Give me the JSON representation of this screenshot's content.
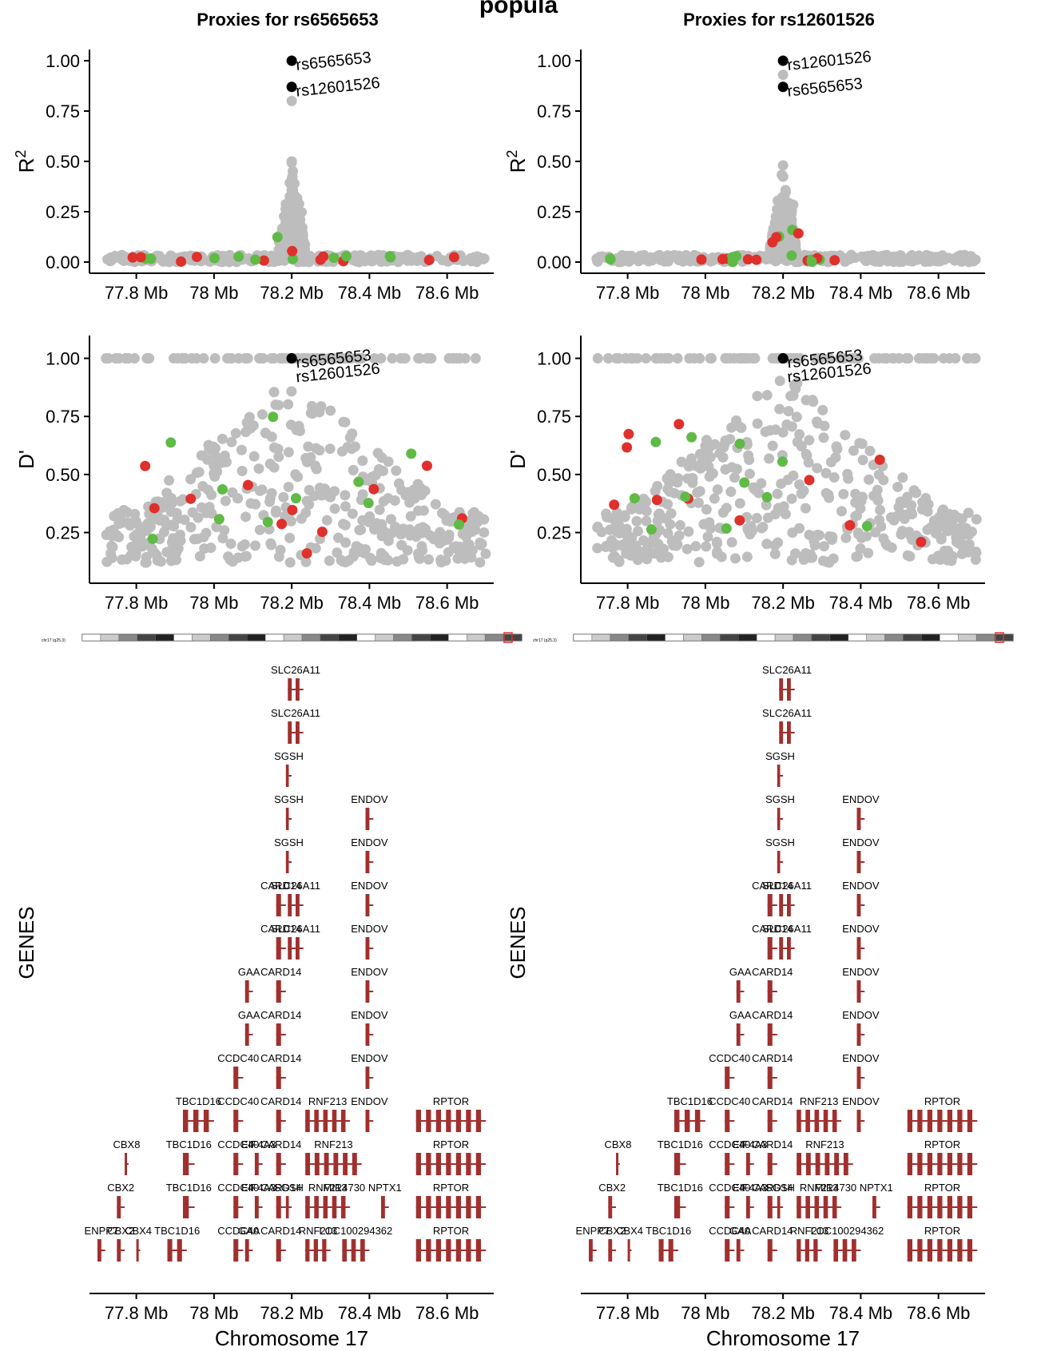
{
  "page": {
    "partial_header": "popula"
  },
  "colors": {
    "grey": "#bdbdbd",
    "red": "#e0302c",
    "green": "#5fba46",
    "black": "#000000",
    "gene": "#a0302e"
  },
  "shared_axis": {
    "x_ticks": [
      "77.8 Mb",
      "78 Mb",
      "78.2 Mb",
      "78.4 Mb",
      "78.6 Mb"
    ],
    "x_tick_values": [
      77.8,
      78.0,
      78.2,
      78.4,
      78.6
    ],
    "xlim": [
      77.7,
      78.72
    ],
    "xlabel": "Chromosome 17",
    "genes_ylabel": "GENES",
    "ideogram_label": "chr17 (q25.3)"
  },
  "chart_data": [
    {
      "type": "scatter",
      "title": "Proxies for rs6565653",
      "ylabel": "R",
      "ylabel_sup": "2",
      "y_ticks": [
        "0.00",
        "0.25",
        "0.50",
        "0.75",
        "1.00"
      ],
      "ylim": [
        0,
        1
      ],
      "highlighted": [
        {
          "label": "rs6565653",
          "x": 78.2,
          "y": 1.0
        },
        {
          "label": "rs12601526",
          "x": 78.2,
          "y": 0.87
        }
      ],
      "peak_x": 78.2,
      "peak_max": 0.5,
      "extra_point": {
        "x": 78.2,
        "y": 0.8
      }
    },
    {
      "type": "scatter",
      "title": "Proxies for rs6565653",
      "ylabel": "D'",
      "y_ticks": [
        "0.25",
        "0.50",
        "0.75",
        "1.00"
      ],
      "ylim": [
        0.08,
        1.05
      ],
      "highlighted": [
        {
          "label": "rs6565653",
          "x": 78.2,
          "y": 1.0
        },
        {
          "label": "rs12601526",
          "x": 78.2,
          "y": 1.0
        }
      ]
    },
    {
      "type": "scatter",
      "title": "Proxies for rs12601526",
      "ylabel": "R",
      "ylabel_sup": "2",
      "y_ticks": [
        "0.00",
        "0.25",
        "0.50",
        "0.75",
        "1.00"
      ],
      "ylim": [
        0,
        1
      ],
      "highlighted": [
        {
          "label": "rs12601526",
          "x": 78.2,
          "y": 1.0
        },
        {
          "label": "rs6565653",
          "x": 78.2,
          "y": 0.87
        }
      ],
      "peak_x": 78.2,
      "peak_max": 0.48,
      "extra_point": {
        "x": 78.2,
        "y": 0.93
      }
    },
    {
      "type": "scatter",
      "title": "Proxies for rs12601526",
      "ylabel": "D'",
      "y_ticks": [
        "0.25",
        "0.50",
        "0.75",
        "1.00"
      ],
      "ylim": [
        0.08,
        1.05
      ],
      "highlighted": [
        {
          "label": "rs6565653",
          "x": 78.2,
          "y": 1.0
        },
        {
          "label": "rs12601526",
          "x": 78.2,
          "y": 1.0
        }
      ]
    }
  ],
  "panels": [
    {
      "title": "Proxies for rs6565653"
    },
    {
      "title": "Proxies for rs12601526"
    }
  ],
  "gene_rows": [
    [
      {
        "name": "SLC26A11",
        "start": 78.19,
        "end": 78.23
      }
    ],
    [
      {
        "name": "SLC26A11",
        "start": 78.19,
        "end": 78.23
      }
    ],
    [
      {
        "name": "SGSH",
        "start": 78.185,
        "end": 78.2
      }
    ],
    [
      {
        "name": "SGSH",
        "start": 78.185,
        "end": 78.2
      },
      {
        "name": "ENDOV",
        "start": 78.39,
        "end": 78.41
      }
    ],
    [
      {
        "name": "SGSH",
        "start": 78.185,
        "end": 78.2
      },
      {
        "name": "ENDOV",
        "start": 78.39,
        "end": 78.41
      }
    ],
    [
      {
        "name": "CARD14",
        "start": 78.16,
        "end": 78.185
      },
      {
        "name": "SLC26A11",
        "start": 78.19,
        "end": 78.23
      },
      {
        "name": "ENDOV",
        "start": 78.39,
        "end": 78.41
      }
    ],
    [
      {
        "name": "CARD14",
        "start": 78.16,
        "end": 78.185
      },
      {
        "name": "SLC26A11",
        "start": 78.19,
        "end": 78.23
      },
      {
        "name": "ENDOV",
        "start": 78.39,
        "end": 78.41
      }
    ],
    [
      {
        "name": "GAA",
        "start": 78.08,
        "end": 78.1
      },
      {
        "name": "CARD14",
        "start": 78.16,
        "end": 78.185
      },
      {
        "name": "ENDOV",
        "start": 78.39,
        "end": 78.41
      }
    ],
    [
      {
        "name": "GAA",
        "start": 78.08,
        "end": 78.1
      },
      {
        "name": "CARD14",
        "start": 78.16,
        "end": 78.185
      },
      {
        "name": "ENDOV",
        "start": 78.39,
        "end": 78.41
      }
    ],
    [
      {
        "name": "CCDC40",
        "start": 78.05,
        "end": 78.075
      },
      {
        "name": "CARD14",
        "start": 78.16,
        "end": 78.185
      },
      {
        "name": "ENDOV",
        "start": 78.39,
        "end": 78.41
      }
    ],
    [
      {
        "name": "TBC1D16",
        "start": 77.92,
        "end": 78.0
      },
      {
        "name": "CCDC40",
        "start": 78.05,
        "end": 78.075
      },
      {
        "name": "CARD14",
        "start": 78.16,
        "end": 78.185
      },
      {
        "name": "RNF213",
        "start": 78.235,
        "end": 78.35
      },
      {
        "name": "ENDOV",
        "start": 78.39,
        "end": 78.41
      },
      {
        "name": "RPTOR",
        "start": 78.52,
        "end": 78.7
      }
    ],
    [
      {
        "name": "CBX8",
        "start": 77.77,
        "end": 77.78
      },
      {
        "name": "TBC1D16",
        "start": 77.92,
        "end": 77.95
      },
      {
        "name": "CCDC40",
        "start": 78.05,
        "end": 78.075
      },
      {
        "name": "EIF4A3",
        "start": 78.105,
        "end": 78.125
      },
      {
        "name": "CARD14",
        "start": 78.16,
        "end": 78.185
      },
      {
        "name": "RNF213",
        "start": 78.235,
        "end": 78.38
      },
      {
        "name": "RPTOR",
        "start": 78.52,
        "end": 78.7
      }
    ],
    [
      {
        "name": "CBX2",
        "start": 77.75,
        "end": 77.77
      },
      {
        "name": "TBC1D16",
        "start": 77.92,
        "end": 77.95
      },
      {
        "name": "CCDC40",
        "start": 78.05,
        "end": 78.075
      },
      {
        "name": "EIF4A3",
        "start": 78.105,
        "end": 78.125
      },
      {
        "name": "SGSH",
        "start": 78.185,
        "end": 78.2
      },
      {
        "name": "CARD14",
        "start": 78.16,
        "end": 78.185
      },
      {
        "name": "RNF213",
        "start": 78.235,
        "end": 78.35
      },
      {
        "name": "MIR4730",
        "start": 78.33,
        "end": 78.34
      },
      {
        "name": "NPTX1",
        "start": 78.43,
        "end": 78.45
      },
      {
        "name": "RPTOR",
        "start": 78.52,
        "end": 78.7
      }
    ],
    [
      {
        "name": "ENPP7",
        "start": 77.7,
        "end": 77.72
      },
      {
        "name": "CBX2",
        "start": 77.75,
        "end": 77.77
      },
      {
        "name": "CBX4",
        "start": 77.8,
        "end": 77.81
      },
      {
        "name": "TBC1D16",
        "start": 77.88,
        "end": 77.93
      },
      {
        "name": "CCDC40",
        "start": 78.05,
        "end": 78.075
      },
      {
        "name": "GAA",
        "start": 78.08,
        "end": 78.1
      },
      {
        "name": "CARD14",
        "start": 78.16,
        "end": 78.185
      },
      {
        "name": "RNF213",
        "start": 78.235,
        "end": 78.3
      },
      {
        "name": "LOC100294362",
        "start": 78.33,
        "end": 78.4
      },
      {
        "name": "RPTOR",
        "start": 78.52,
        "end": 78.7
      }
    ]
  ],
  "gene_row_labels_left": [
    [
      "SLC26A11"
    ],
    [
      "SLC26A11"
    ],
    [
      "SGSH"
    ],
    [
      "SGSH",
      "ENDOV"
    ],
    [
      "SGSH",
      "ENDOV"
    ],
    [
      "CARD14",
      "SLC26A11",
      "ENDOV"
    ],
    [
      "CARD14",
      "SLC26A11",
      "ENDOV"
    ],
    [
      "GAA",
      "CARD14",
      "ENDOV"
    ],
    [
      "GAA",
      "CARD14",
      "ENDOV"
    ],
    [
      "CCDC40",
      "CARD14",
      "ENDOV"
    ],
    [
      "TBC1D16",
      "CCDC40",
      "CARD14",
      "RNF213",
      "ENDOV",
      "RPTOR"
    ],
    [
      "CBX8",
      "TBC1D16",
      "CCDC40",
      "CARD14",
      "EIF4A3",
      "RNF213",
      "RPTOR"
    ],
    [
      "CBX2",
      "TBC1D16",
      "CCDC40",
      "CARD14",
      "RNF213",
      "MIR4730",
      "EIF4A3",
      "SGSH",
      "RNF213",
      "NPTX1",
      "RPTOR"
    ],
    [
      "CBX2",
      "ENPP7",
      "CBX4",
      "TBC1D16",
      "CCDC40",
      "CARD14",
      "LOC100294362",
      "GAA",
      "RNF213",
      "RPTOR"
    ]
  ]
}
